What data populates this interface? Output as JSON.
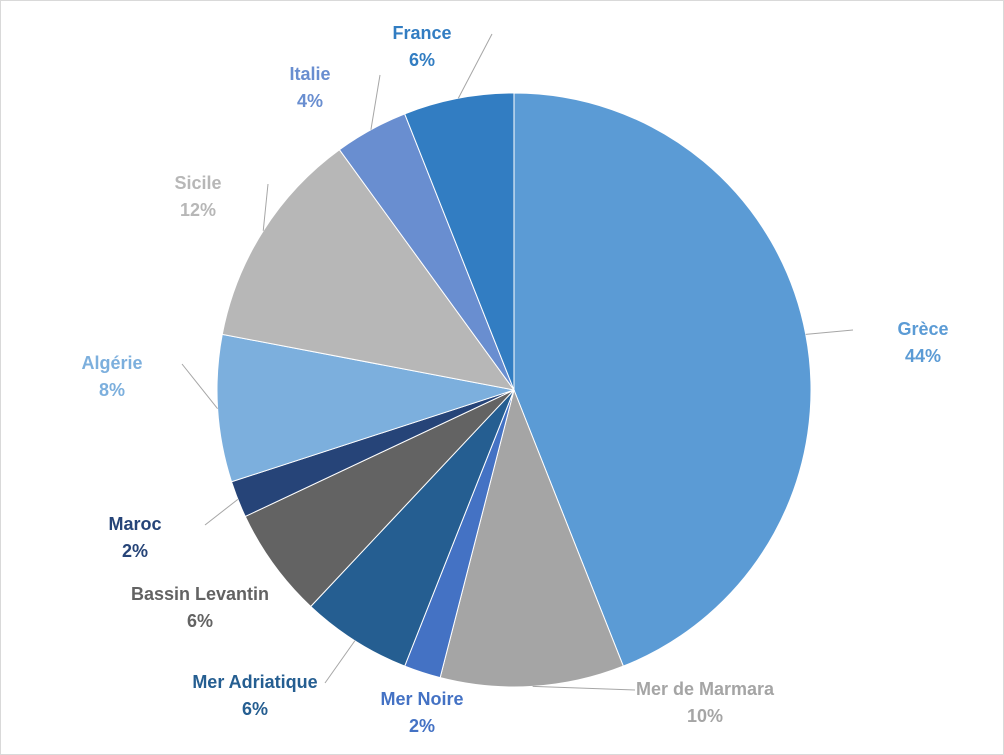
{
  "chart_data": {
    "type": "pie",
    "categories": [
      "Grèce",
      "Mer de Marmara",
      "Mer Noire",
      "Mer Adriatique",
      "Bassin Levantin",
      "Maroc",
      "Algérie",
      "Sicile",
      "Italie",
      "France"
    ],
    "values": [
      44,
      10,
      2,
      6,
      6,
      2,
      8,
      12,
      4,
      6
    ],
    "value_labels": [
      "44%",
      "10%",
      "2%",
      "6%",
      "6%",
      "2%",
      "8%",
      "12%",
      "4%",
      "6%"
    ],
    "colors": [
      "#5b9bd5",
      "#a5a5a5",
      "#4472c4",
      "#255e91",
      "#636363",
      "#264478",
      "#7cafdd",
      "#b7b7b7",
      "#698ed0",
      "#327dc2"
    ]
  }
}
